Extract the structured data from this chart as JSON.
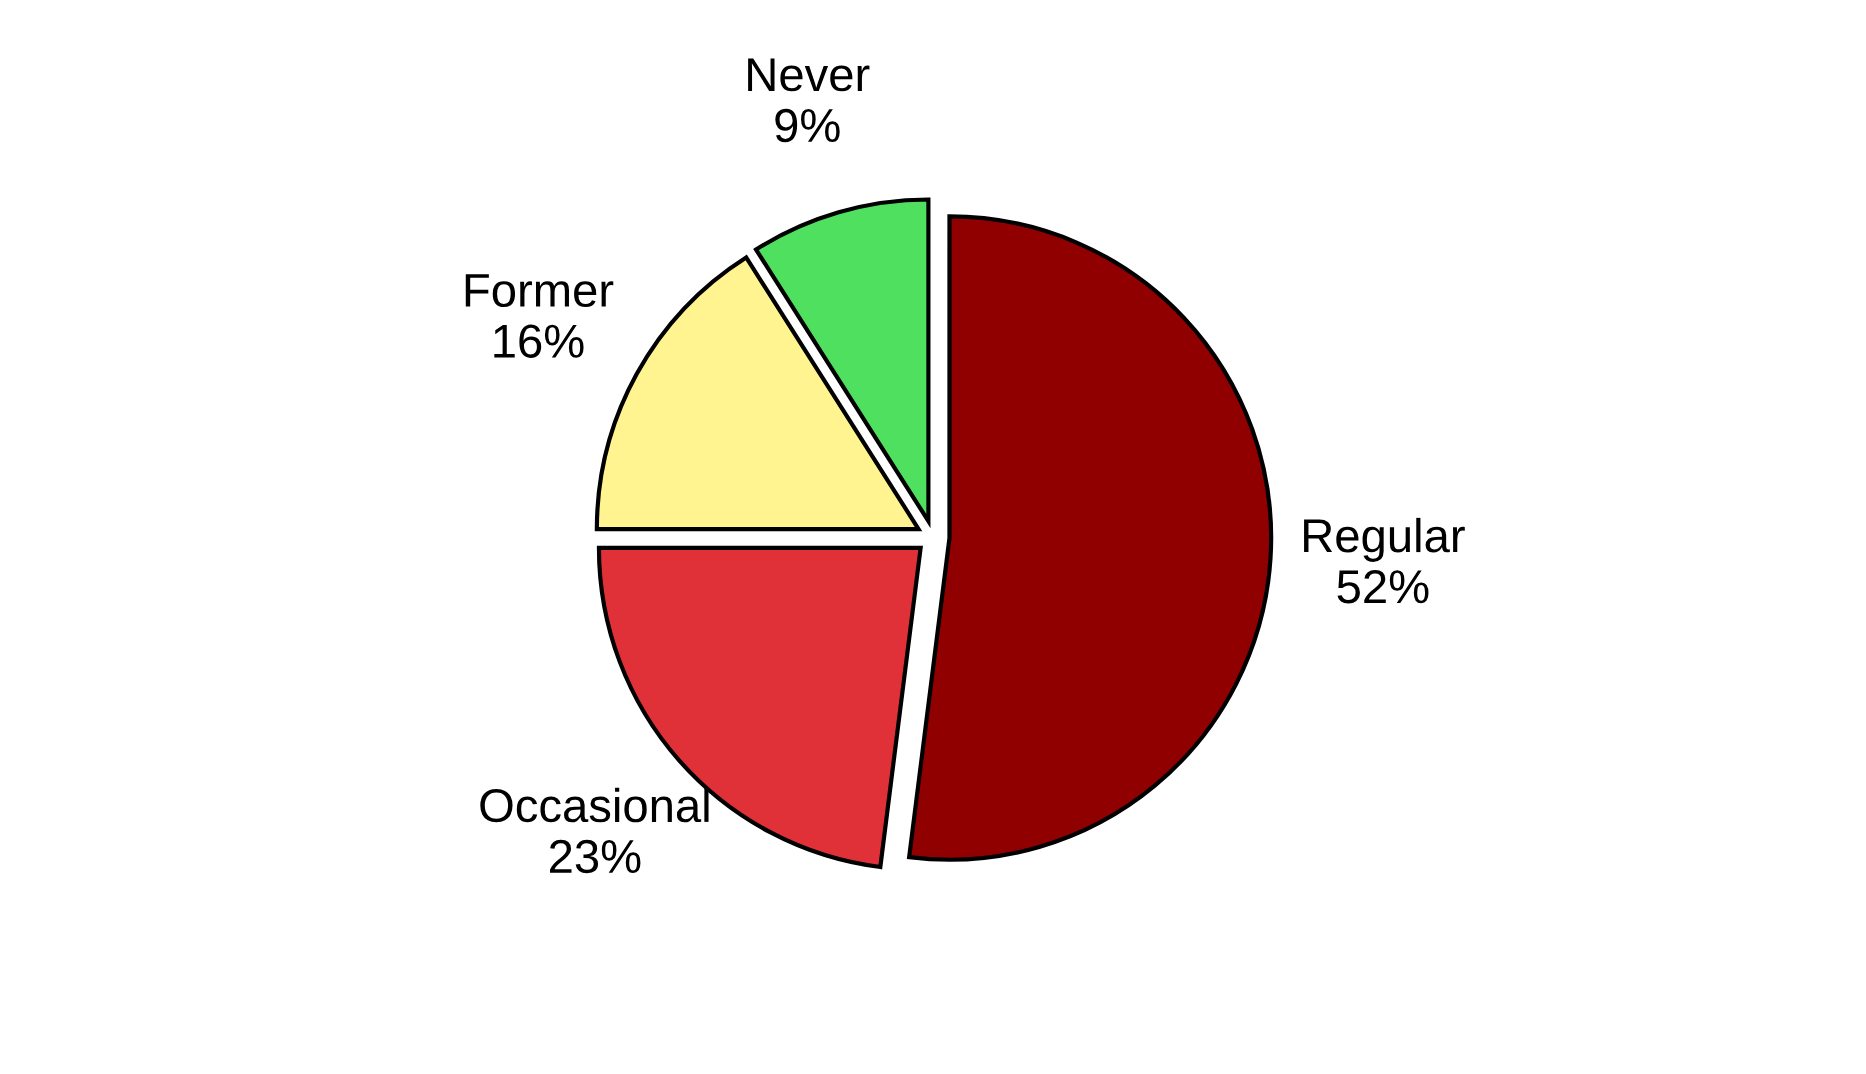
{
  "chart_data": {
    "type": "pie",
    "categories": [
      "Regular",
      "Occasional",
      "Former",
      "Never"
    ],
    "values": [
      52,
      23,
      16,
      9
    ],
    "value_labels": [
      "52%",
      "23%",
      "16%",
      "9%"
    ],
    "colors": [
      "#900000",
      "#e03038",
      "#fff490",
      "#50e060"
    ]
  }
}
